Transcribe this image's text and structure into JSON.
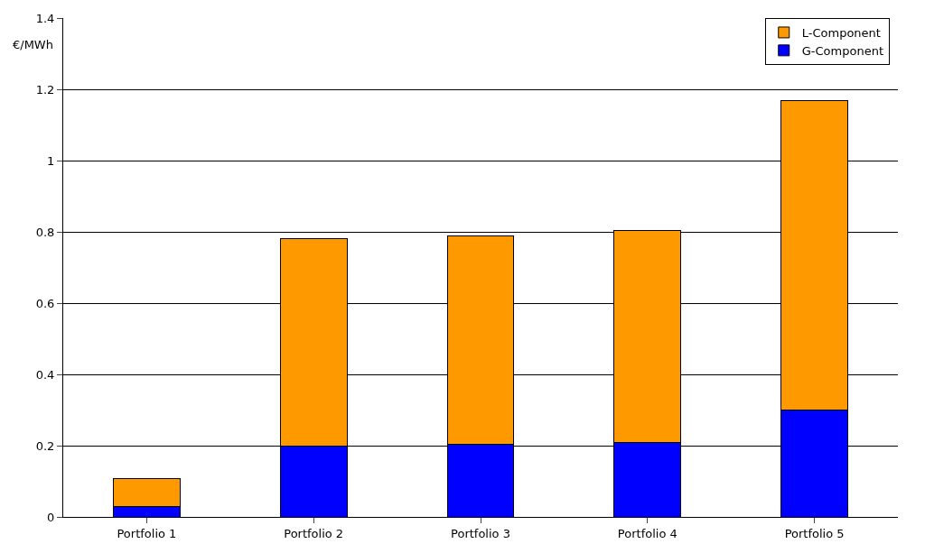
{
  "chart_data": {
    "type": "bar",
    "stacked": true,
    "ylabel": "€/MWh",
    "categories": [
      "Portfolio 1",
      "Portfolio 2",
      "Portfolio 3",
      "Portfolio 4",
      "Portfolio 5"
    ],
    "series": [
      {
        "name": "G-Component",
        "color": "#0000ff",
        "values": [
          0.028,
          0.2,
          0.203,
          0.208,
          0.3
        ]
      },
      {
        "name": "L-Component",
        "color": "#ff9900",
        "values": [
          0.079,
          0.58,
          0.585,
          0.597,
          0.869
        ]
      }
    ],
    "ylim": [
      0,
      1.4
    ],
    "yticks": [
      0,
      0.2,
      0.4,
      0.6,
      0.8,
      1,
      1.2,
      1.4
    ],
    "grid": "y",
    "legend": "top right"
  }
}
